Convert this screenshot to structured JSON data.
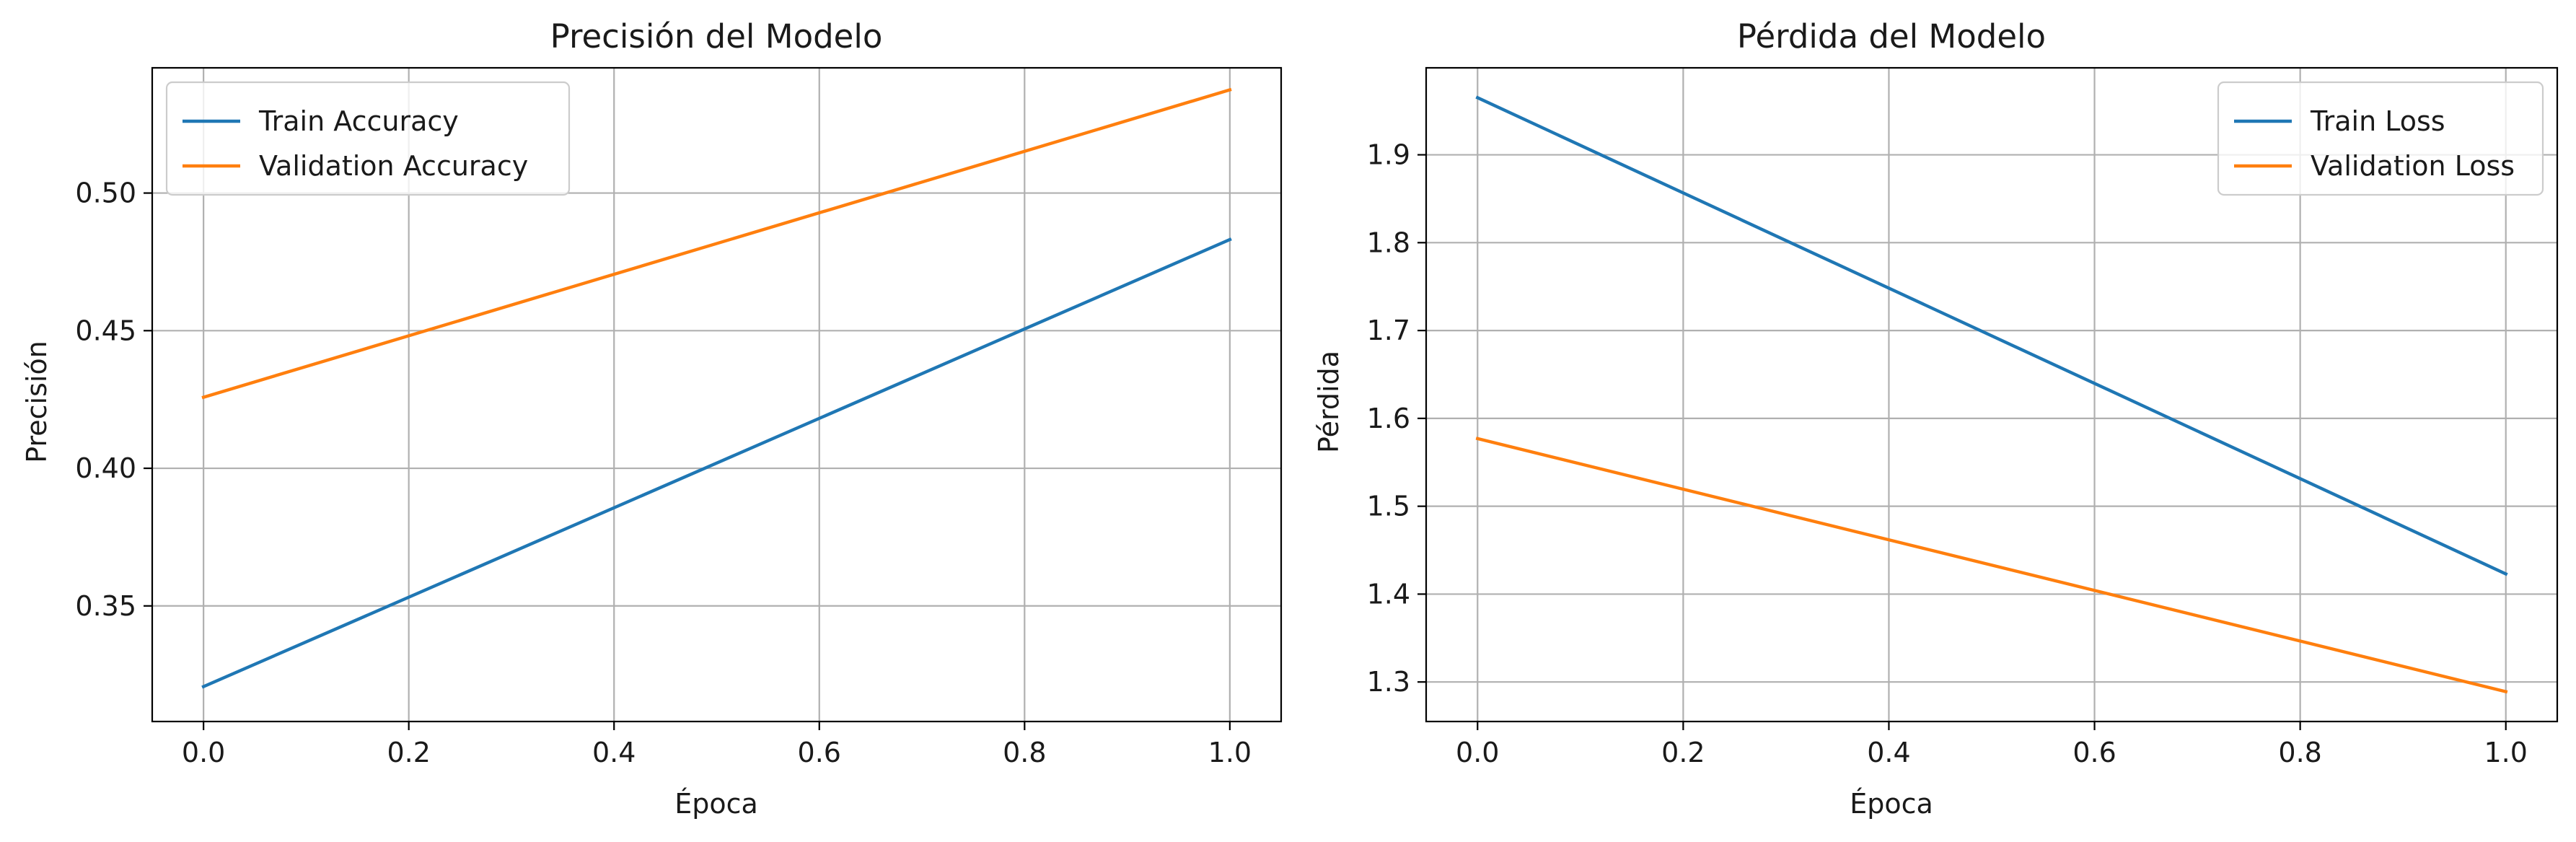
{
  "chart_data": [
    {
      "type": "line",
      "title": "Precisión del Modelo",
      "xlabel": "Época",
      "ylabel": "Precisión",
      "xlim": [
        -0.05,
        1.05
      ],
      "ylim": [
        0.308,
        0.5455
      ],
      "xticks": [
        "0.0",
        "0.2",
        "0.4",
        "0.6",
        "0.8",
        "1.0"
      ],
      "yticks": [
        "0.35",
        "0.40",
        "0.45",
        "0.50"
      ],
      "grid": true,
      "legend": "upper left",
      "series": [
        {
          "name": "Train Accuracy",
          "x": [
            0,
            1
          ],
          "values": [
            0.3207,
            0.4831
          ],
          "color": "#1f77b4"
        },
        {
          "name": "Validation Accuracy",
          "x": [
            0,
            1
          ],
          "values": [
            0.4258,
            0.5375
          ],
          "color": "#ff7f0e"
        }
      ]
    },
    {
      "type": "line",
      "title": "Pérdida del Modelo",
      "xlabel": "Época",
      "ylabel": "Pérdida",
      "xlim": [
        -0.05,
        1.05
      ],
      "ylim": [
        1.255,
        1.999
      ],
      "xticks": [
        "0.0",
        "0.2",
        "0.4",
        "0.6",
        "0.8",
        "1.0"
      ],
      "yticks": [
        "1.3",
        "1.4",
        "1.5",
        "1.6",
        "1.7",
        "1.8",
        "1.9"
      ],
      "grid": true,
      "legend": "upper right",
      "series": [
        {
          "name": "Train Loss",
          "x": [
            0,
            1
          ],
          "values": [
            1.965,
            1.423
          ],
          "color": "#1f77b4"
        },
        {
          "name": "Validation Loss",
          "x": [
            0,
            1
          ],
          "values": [
            1.577,
            1.289
          ],
          "color": "#ff7f0e"
        }
      ]
    }
  ]
}
